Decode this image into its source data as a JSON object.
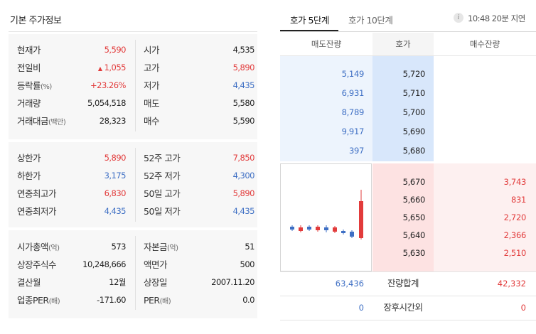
{
  "left": {
    "title": "기본 주가정보",
    "block1": [
      {
        "l1": "현재가",
        "v1": "5,590",
        "c1": "red",
        "l2": "시가",
        "v2": "4,535",
        "c2": ""
      },
      {
        "l1": "전일비",
        "v1": "1,055",
        "c1": "red",
        "arrow": "▲",
        "l2": "고가",
        "v2": "5,890",
        "c2": "red"
      },
      {
        "l1": "등락률",
        "l1s": "(%)",
        "v1": "+23.26%",
        "c1": "red",
        "l2": "저가",
        "v2": "4,435",
        "c2": "blue"
      },
      {
        "l1": "거래량",
        "v1": "5,054,518",
        "c1": "",
        "l2": "매도",
        "v2": "5,580",
        "c2": ""
      },
      {
        "l1": "거래대금",
        "l1s": "(백만)",
        "v1": "28,323",
        "c1": "",
        "l2": "매수",
        "v2": "5,590",
        "c2": ""
      }
    ],
    "block2": [
      {
        "l1": "상한가",
        "v1": "5,890",
        "c1": "red",
        "l2": "52주 고가",
        "v2": "7,850",
        "c2": "red"
      },
      {
        "l1": "하한가",
        "v1": "3,175",
        "c1": "blue",
        "l2": "52주 저가",
        "v2": "4,300",
        "c2": "blue"
      },
      {
        "l1": "연중최고가",
        "v1": "6,830",
        "c1": "red",
        "l2": "50일 고가",
        "v2": "5,890",
        "c2": "red"
      },
      {
        "l1": "연중최저가",
        "v1": "4,435",
        "c1": "blue",
        "l2": "50일 저가",
        "v2": "4,435",
        "c2": "blue"
      }
    ],
    "block3": [
      {
        "l1": "시가총액",
        "l1s": "(억)",
        "v1": "573",
        "c1": "",
        "l2": "자본금",
        "l2s": "(억)",
        "v2": "51",
        "c2": ""
      },
      {
        "l1": "상장주식수",
        "v1": "10,248,666",
        "c1": "",
        "l2": "액면가",
        "v2": "500",
        "c2": ""
      },
      {
        "l1": "결산월",
        "v1": "12월",
        "c1": "",
        "l2": "상장일",
        "v2": "2007.11.20",
        "c2": ""
      },
      {
        "l1": "업종PER",
        "l1s": "(배)",
        "v1": "-171.60",
        "c1": "",
        "l2": "PER",
        "l2s": "(배)",
        "v2": "0.0",
        "c2": ""
      }
    ]
  },
  "orderbook": {
    "tabs": [
      "호가 5단계",
      "호가 10단계"
    ],
    "info_icon": "i",
    "delay_text": "10:48 20분 지연",
    "headers": {
      "ask_qty": "매도잔량",
      "price": "호가",
      "bid_qty": "매수잔량"
    },
    "asks": [
      {
        "qty": "5,149",
        "price": "5,720"
      },
      {
        "qty": "6,931",
        "price": "5,710"
      },
      {
        "qty": "8,789",
        "price": "5,700"
      },
      {
        "qty": "9,917",
        "price": "5,690"
      },
      {
        "qty": "397",
        "price": "5,680"
      }
    ],
    "bids": [
      {
        "price": "5,670",
        "qty": "3,743"
      },
      {
        "price": "5,660",
        "qty": "831"
      },
      {
        "price": "5,650",
        "qty": "2,720"
      },
      {
        "price": "5,640",
        "qty": "2,366"
      },
      {
        "price": "5,630",
        "qty": "2,510"
      }
    ],
    "total": {
      "ask": "63,436",
      "label": "잔량합계",
      "bid": "42,332"
    },
    "after_hours": {
      "ask": "0",
      "label": "장후시간외",
      "bid": "0"
    },
    "colors": {
      "up": "#e23b3b",
      "down": "#3e6fc4"
    }
  }
}
